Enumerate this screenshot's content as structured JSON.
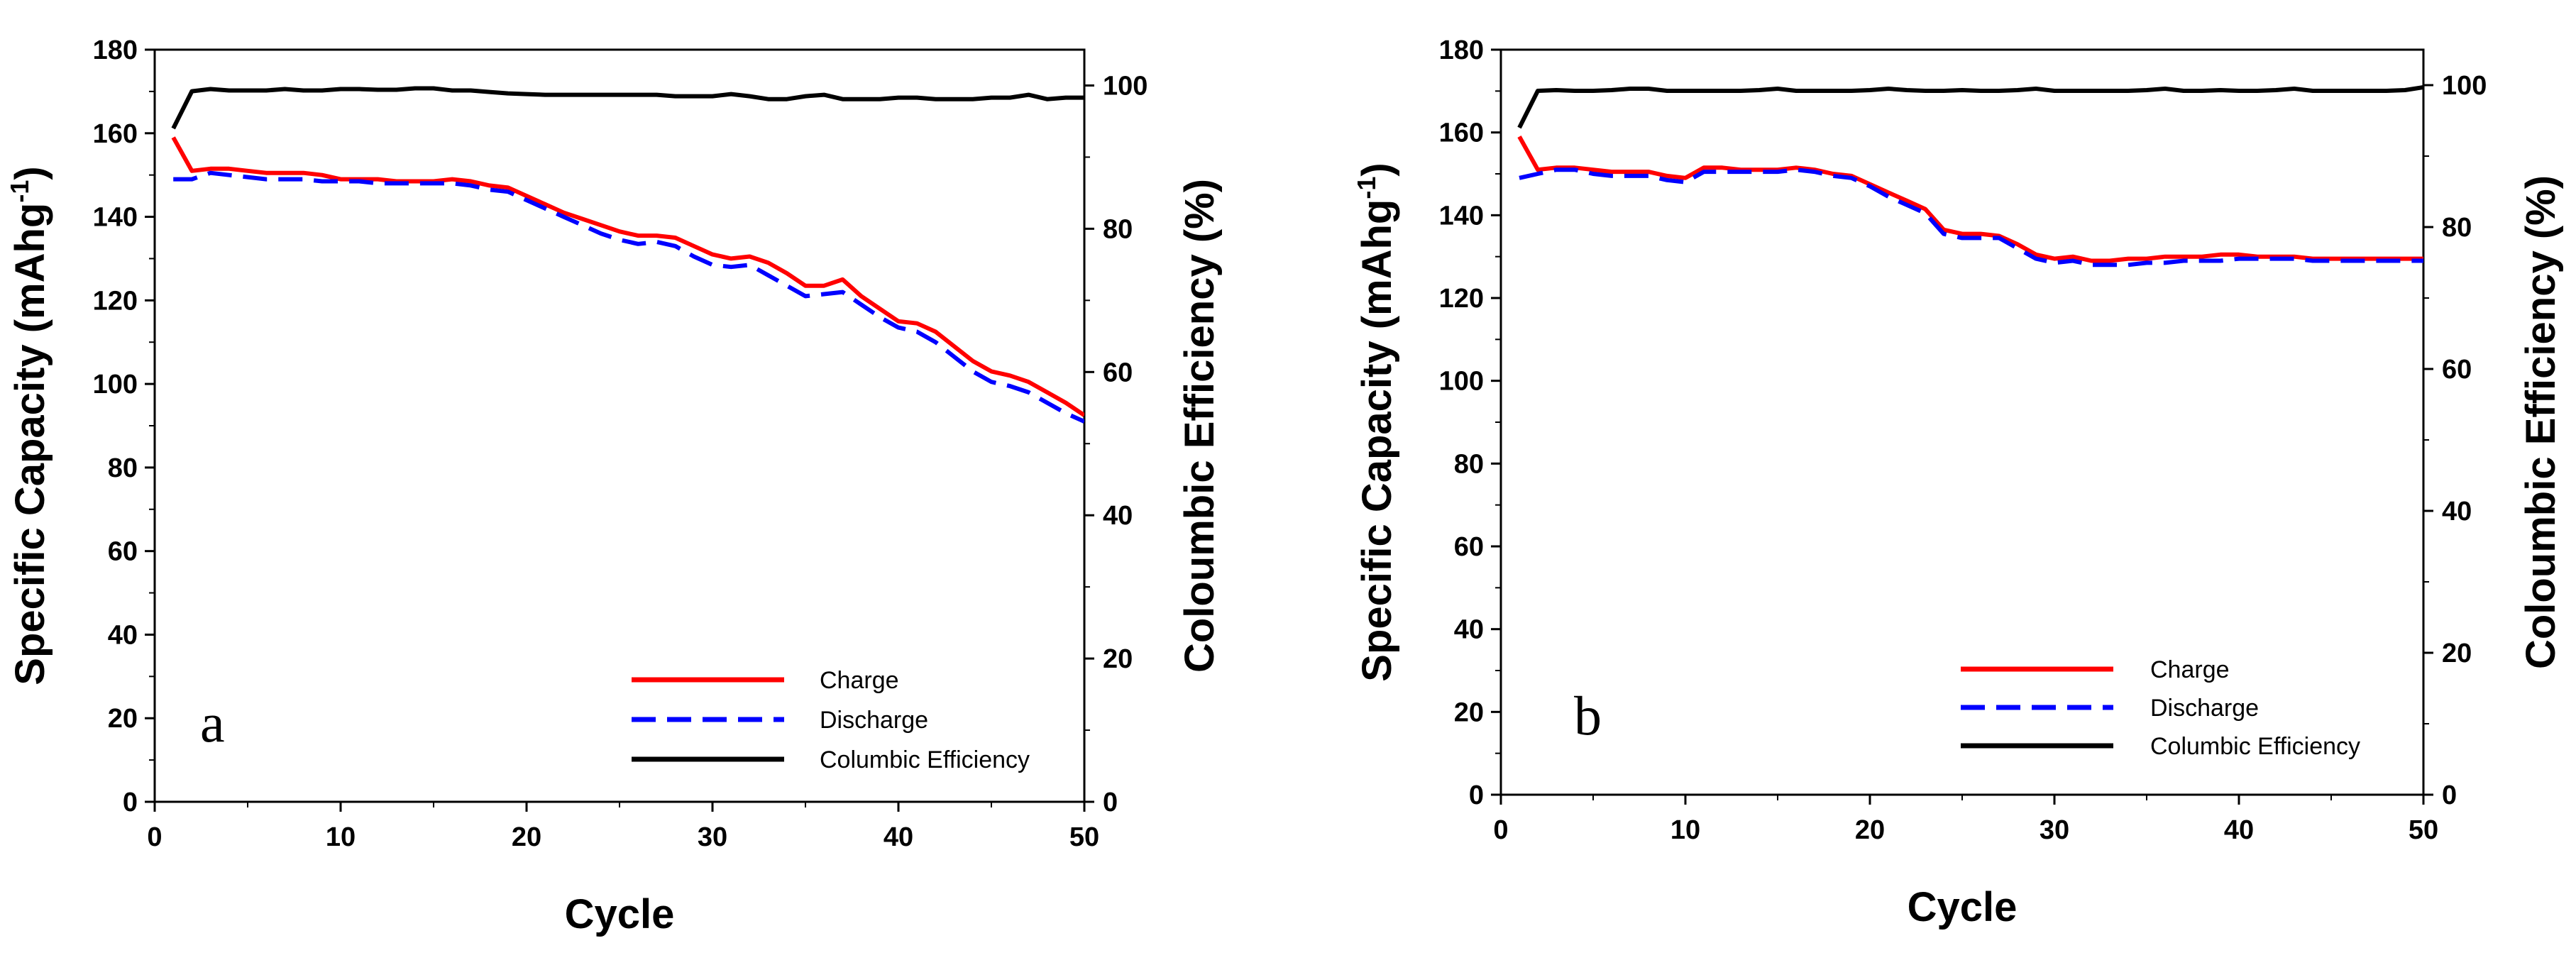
{
  "colors": {
    "charge": "#ff0000",
    "discharge": "#0000ff",
    "efficiency": "#000000"
  },
  "chart_data": [
    {
      "type": "line",
      "panel_label": "a",
      "xlabel": "Cycle",
      "ylabel_left": "Specific Capacity (mAhg-1)",
      "ylabel_left_main": "Specific Capacity (mAhg",
      "ylabel_left_sup": "-1",
      "ylabel_left_close": ")",
      "ylabel_right": "Coloumbic Efficiency (%)",
      "xlim": [
        0,
        50
      ],
      "ylim_left": [
        0,
        180
      ],
      "ylim_right": [
        0,
        105
      ],
      "x_ticks": [
        0,
        10,
        20,
        30,
        40,
        50
      ],
      "y_left_ticks": [
        0,
        20,
        40,
        60,
        80,
        100,
        120,
        140,
        160,
        180
      ],
      "y_right_ticks": [
        0,
        20,
        40,
        60,
        80,
        100
      ],
      "grid": false,
      "legend_position": "bottom-right",
      "x": [
        1,
        2,
        3,
        4,
        5,
        6,
        7,
        8,
        9,
        10,
        11,
        12,
        13,
        14,
        15,
        16,
        17,
        18,
        19,
        20,
        21,
        22,
        23,
        24,
        25,
        26,
        27,
        28,
        29,
        30,
        31,
        32,
        33,
        34,
        35,
        36,
        37,
        38,
        39,
        40,
        41,
        42,
        43,
        44,
        45,
        46,
        47,
        48,
        49,
        50
      ],
      "series": [
        {
          "name": "Charge",
          "axis": "left",
          "style": "solid",
          "color": "#ff0000",
          "values": [
            159,
            151,
            151.5,
            151.5,
            151,
            150.5,
            150.5,
            150.5,
            150,
            149,
            149,
            149,
            148.5,
            148.5,
            148.5,
            149,
            148.5,
            147.5,
            147,
            145,
            143,
            141,
            139.5,
            138,
            136.5,
            135.5,
            135.5,
            135,
            133,
            131,
            130,
            130.5,
            129,
            126.5,
            123.5,
            123.5,
            125,
            121,
            118,
            115,
            114.5,
            112.5,
            109,
            105.5,
            103,
            102,
            100.5,
            98,
            95.5,
            92.5
          ]
        },
        {
          "name": "Discharge",
          "axis": "left",
          "style": "dashed",
          "color": "#0000ff",
          "values": [
            149,
            149,
            150.5,
            150,
            149.5,
            149,
            149,
            149,
            148.5,
            148.5,
            148.5,
            148,
            148,
            148,
            148,
            148,
            147.5,
            146.5,
            146,
            144,
            142,
            140,
            138,
            136,
            134.5,
            133.5,
            134,
            133,
            130.5,
            128.5,
            128,
            128.5,
            126,
            123.5,
            121,
            121.5,
            122,
            119,
            116,
            113.5,
            112.5,
            110,
            106.5,
            103,
            100.5,
            99.5,
            98,
            95.5,
            93,
            91
          ]
        },
        {
          "name": "Columbic Efficiency",
          "axis": "right",
          "style": "solid",
          "color": "#000000",
          "values": [
            94,
            99.2,
            99.5,
            99.3,
            99.3,
            99.3,
            99.5,
            99.3,
            99.3,
            99.5,
            99.5,
            99.4,
            99.4,
            99.6,
            99.6,
            99.3,
            99.3,
            99.1,
            98.9,
            98.8,
            98.7,
            98.7,
            98.7,
            98.7,
            98.7,
            98.7,
            98.7,
            98.5,
            98.5,
            98.5,
            98.8,
            98.5,
            98.1,
            98.1,
            98.5,
            98.7,
            98.1,
            98.1,
            98.1,
            98.3,
            98.3,
            98.1,
            98.1,
            98.1,
            98.3,
            98.3,
            98.7,
            98.1,
            98.3,
            98.3
          ]
        }
      ]
    },
    {
      "type": "line",
      "panel_label": "b",
      "xlabel": "Cycle",
      "ylabel_left": "Specific Capacity (mAhg-1)",
      "ylabel_left_main": "Specific Capacity (mAhg",
      "ylabel_left_sup": "-1",
      "ylabel_left_close": ")",
      "ylabel_right": "Coloumbic Efficiency (%)",
      "xlim": [
        0,
        50
      ],
      "ylim_left": [
        0,
        180
      ],
      "ylim_right": [
        0,
        105
      ],
      "x_ticks": [
        0,
        10,
        20,
        30,
        40,
        50
      ],
      "y_left_ticks": [
        0,
        20,
        40,
        60,
        80,
        100,
        120,
        140,
        160,
        180
      ],
      "y_right_ticks": [
        0,
        20,
        40,
        60,
        80,
        100
      ],
      "grid": false,
      "legend_position": "bottom-right",
      "x": [
        1,
        2,
        3,
        4,
        5,
        6,
        7,
        8,
        9,
        10,
        11,
        12,
        13,
        14,
        15,
        16,
        17,
        18,
        19,
        20,
        21,
        22,
        23,
        24,
        25,
        26,
        27,
        28,
        29,
        30,
        31,
        32,
        33,
        34,
        35,
        36,
        37,
        38,
        39,
        40,
        41,
        42,
        43,
        44,
        45,
        46,
        47,
        48,
        49,
        50
      ],
      "series": [
        {
          "name": "Charge",
          "axis": "left",
          "style": "solid",
          "color": "#ff0000",
          "values": [
            159,
            151,
            151.5,
            151.5,
            151,
            150.5,
            150.5,
            150.5,
            149.5,
            149,
            151.5,
            151.5,
            151,
            151,
            151,
            151.5,
            151,
            150,
            149.5,
            147.5,
            145.5,
            143.5,
            141.5,
            136.5,
            135.5,
            135.5,
            135,
            133,
            130.5,
            129.5,
            130,
            129,
            129,
            129.5,
            129.5,
            130,
            130,
            130,
            130.5,
            130.5,
            130,
            130,
            130,
            129.5,
            129.5,
            129.5,
            129.5,
            129.5,
            129.5,
            129.5
          ]
        },
        {
          "name": "Discharge",
          "axis": "left",
          "style": "dashed",
          "color": "#0000ff",
          "values": [
            149,
            150,
            151,
            151,
            150,
            149.5,
            149.5,
            149.5,
            148.5,
            148,
            150.5,
            150.5,
            150.5,
            150.5,
            150.5,
            151,
            150.5,
            149.5,
            149,
            147,
            144.5,
            142.5,
            140.5,
            135.5,
            134.5,
            134.5,
            134.5,
            132,
            129.5,
            128.5,
            129,
            128,
            128,
            128,
            128.5,
            128.5,
            129,
            129,
            129,
            129.5,
            129.5,
            129.5,
            129.5,
            129,
            129,
            129,
            129,
            129,
            129,
            129
          ]
        },
        {
          "name": "Columbic Efficiency",
          "axis": "right",
          "style": "solid",
          "color": "#000000",
          "values": [
            94,
            99.2,
            99.3,
            99.2,
            99.2,
            99.3,
            99.5,
            99.5,
            99.2,
            99.2,
            99.2,
            99.2,
            99.2,
            99.3,
            99.5,
            99.2,
            99.2,
            99.2,
            99.2,
            99.3,
            99.5,
            99.3,
            99.2,
            99.2,
            99.3,
            99.2,
            99.2,
            99.3,
            99.5,
            99.2,
            99.2,
            99.2,
            99.2,
            99.2,
            99.3,
            99.5,
            99.2,
            99.2,
            99.3,
            99.2,
            99.2,
            99.3,
            99.5,
            99.2,
            99.2,
            99.2,
            99.2,
            99.2,
            99.3,
            99.7
          ]
        }
      ]
    }
  ]
}
